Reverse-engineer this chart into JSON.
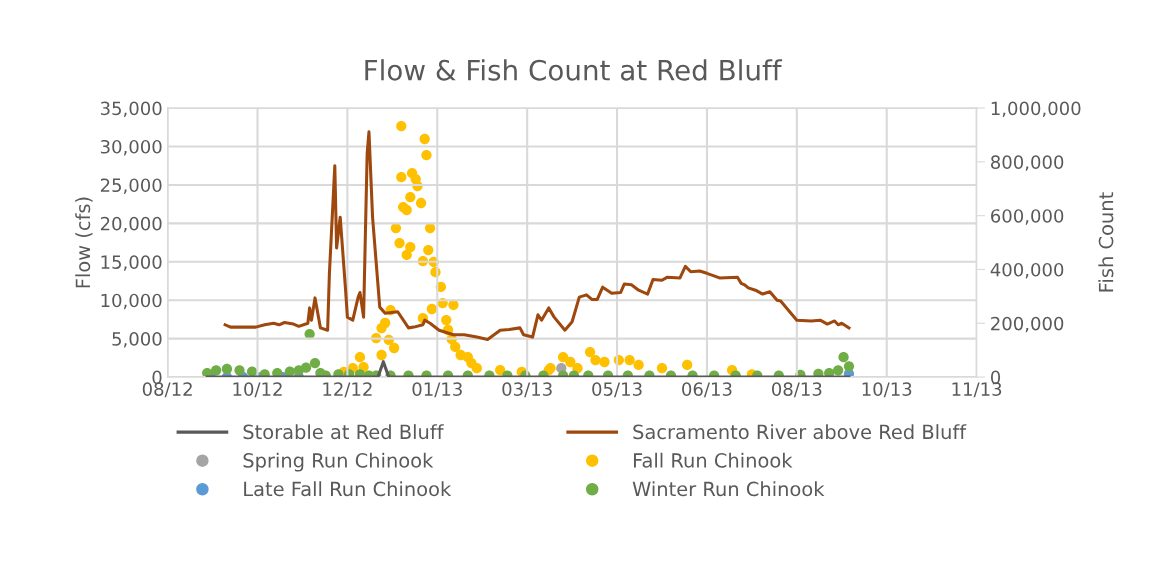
{
  "chart_data": {
    "type": "line",
    "title": "Flow & Fish Count at Red Bluff",
    "ylabel": "Flow (cfs)",
    "y2label": "Fish Count",
    "xlim": [
      "2012-08-29",
      "2013-11-22"
    ],
    "xticks": [
      {
        "value": "2012-08-29",
        "label": "08/12"
      },
      {
        "value": "2012-10-18",
        "label": "10/12"
      },
      {
        "value": "2012-12-07",
        "label": "12/12"
      },
      {
        "value": "2013-01-26",
        "label": "01/13"
      },
      {
        "value": "2013-03-17",
        "label": "03/13"
      },
      {
        "value": "2013-05-06",
        "label": "05/13"
      },
      {
        "value": "2013-06-25",
        "label": "06/13"
      },
      {
        "value": "2013-08-14",
        "label": "08/13"
      },
      {
        "value": "2013-10-03",
        "label": "10/13"
      },
      {
        "value": "2013-11-22",
        "label": "11/13"
      }
    ],
    "ylim": [
      0,
      35000
    ],
    "yticks": [
      0,
      {
        "value": 5000,
        "label": "5,000"
      },
      {
        "value": 10000,
        "label": "10,000"
      },
      {
        "value": 15000,
        "label": "15,000"
      },
      {
        "value": 20000,
        "label": "20,000"
      },
      {
        "value": 25000,
        "label": "25,000"
      },
      {
        "value": 30000,
        "label": "30,000"
      },
      {
        "value": 35000,
        "label": "35,000"
      }
    ],
    "y2lim": [
      0,
      1000000
    ],
    "y2ticks": [
      0,
      {
        "value": 200000,
        "label": "200,000"
      },
      {
        "value": 400000,
        "label": "400,000"
      },
      {
        "value": 600000,
        "label": "600,000"
      },
      {
        "value": 800000,
        "label": "800,000"
      },
      {
        "value": 1000000,
        "label": "1,000,000"
      }
    ],
    "grid": true,
    "legend": "bottom",
    "series": [
      {
        "name": "Storable at Red Bluff",
        "type": "line",
        "line_style": "solid",
        "color": "#595959",
        "x": [
          "2012-09-20",
          "2012-12-24",
          "2012-12-27",
          "2012-12-30",
          "2013-09-12"
        ],
        "values": [
          0,
          0,
          2000,
          0,
          0
        ]
      },
      {
        "name": "Sacramento River above Red Bluff",
        "type": "line",
        "line_style": "solid",
        "color": "#9e480e",
        "x": [
          "2012-09-30",
          "2012-10-03",
          "2012-10-17",
          "2012-10-22",
          "2012-10-27",
          "2012-10-30",
          "2012-11-02",
          "2012-11-07",
          "2012-11-10",
          "2012-11-15",
          "2012-11-16",
          "2012-11-17",
          "2012-11-19",
          "2012-11-22",
          "2012-11-26",
          "2012-11-27",
          "2012-11-30",
          "2012-12-01",
          "2012-12-03",
          "2012-12-06",
          "2012-12-07",
          "2012-12-10",
          "2012-12-13",
          "2012-12-14",
          "2012-12-16",
          "2012-12-18",
          "2012-12-19",
          "2012-12-21",
          "2012-12-25",
          "2012-12-28",
          "2013-01-04",
          "2013-01-10",
          "2013-01-13",
          "2013-01-18",
          "2013-01-19",
          "2013-01-22",
          "2013-01-27",
          "2013-02-04",
          "2013-02-10",
          "2013-02-17",
          "2013-02-23",
          "2013-03-02",
          "2013-03-07",
          "2013-03-13",
          "2013-03-15",
          "2013-03-20",
          "2013-03-23",
          "2013-03-25",
          "2013-03-29",
          "2013-04-01",
          "2013-04-07",
          "2013-04-11",
          "2013-04-15",
          "2013-04-19",
          "2013-04-22",
          "2013-04-25",
          "2013-04-28",
          "2013-05-03",
          "2013-05-08",
          "2013-05-10",
          "2013-05-14",
          "2013-05-18",
          "2013-05-23",
          "2013-05-26",
          "2013-05-31",
          "2013-06-03",
          "2013-06-10",
          "2013-06-13",
          "2013-06-16",
          "2013-06-21",
          "2013-06-25",
          "2013-07-02",
          "2013-07-12",
          "2013-07-14",
          "2013-07-16",
          "2013-07-18",
          "2013-07-22",
          "2013-07-26",
          "2013-07-30",
          "2013-08-03",
          "2013-08-05",
          "2013-08-14",
          "2013-08-22",
          "2013-08-27",
          "2013-08-31",
          "2013-09-04",
          "2013-09-06",
          "2013-09-08",
          "2013-09-12"
        ],
        "values": [
          6800,
          6500,
          6500,
          6800,
          7000,
          6800,
          7100,
          6900,
          6600,
          7000,
          9000,
          7400,
          10300,
          6400,
          6100,
          13500,
          27500,
          16800,
          20800,
          11300,
          7800,
          7400,
          10400,
          11000,
          7800,
          29100,
          31900,
          20800,
          9100,
          8300,
          8500,
          6400,
          6500,
          6800,
          7400,
          7000,
          6100,
          5500,
          5500,
          5200,
          4900,
          6100,
          6200,
          6400,
          5500,
          5200,
          8100,
          7400,
          9000,
          7800,
          6100,
          7200,
          10400,
          10700,
          10100,
          10100,
          11700,
          10900,
          11000,
          12100,
          12000,
          11300,
          10800,
          12700,
          12600,
          13000,
          12900,
          14400,
          13700,
          13800,
          13500,
          12900,
          13000,
          12200,
          12000,
          11600,
          11300,
          10800,
          11100,
          10000,
          9900,
          7400,
          7300,
          7400,
          6900,
          7300,
          6800,
          7000,
          6400
        ]
      },
      {
        "name": "Spring Run Chinook",
        "type": "scatter",
        "axis": "y2",
        "marker": "circle",
        "color": "#a5a5a5",
        "x": [
          "2013-04-05"
        ],
        "values": [
          33000
        ]
      },
      {
        "name": "Fall Run Chinook",
        "type": "scatter",
        "axis": "y2",
        "marker": "circle",
        "color": "#ffc000",
        "x": [
          "2012-12-05",
          "2012-12-10",
          "2012-12-14",
          "2012-12-16",
          "2012-12-23",
          "2012-12-26",
          "2012-12-26",
          "2012-12-28",
          "2012-12-30",
          "2012-12-31",
          "2013-01-02",
          "2013-01-03",
          "2013-01-05",
          "2013-01-06",
          "2013-01-06",
          "2013-01-07",
          "2013-01-09",
          "2013-01-09",
          "2013-01-11",
          "2013-01-11",
          "2013-01-12",
          "2013-01-14",
          "2013-01-15",
          "2013-01-17",
          "2013-01-18",
          "2013-01-18",
          "2013-01-19",
          "2013-01-20",
          "2013-01-21",
          "2013-01-22",
          "2013-01-23",
          "2013-01-24",
          "2013-01-25",
          "2013-01-28",
          "2013-01-29",
          "2013-01-31",
          "2013-02-01",
          "2013-02-03",
          "2013-02-04",
          "2013-02-05",
          "2013-02-08",
          "2013-02-12",
          "2013-02-14",
          "2013-02-17",
          "2013-03-02",
          "2013-03-14",
          "2013-03-29",
          "2013-03-30",
          "2013-04-06",
          "2013-04-10",
          "2013-04-14",
          "2013-04-21",
          "2013-04-24",
          "2013-04-29",
          "2013-05-07",
          "2013-05-13",
          "2013-05-18",
          "2013-05-31",
          "2013-06-14",
          "2013-07-09",
          "2013-07-20"
        ],
        "values": [
          19000,
          33000,
          74000,
          37000,
          145000,
          182000,
          82000,
          201000,
          138000,
          249000,
          108000,
          554000,
          498000,
          933000,
          743000,
          632000,
          621000,
          454000,
          669000,
          483000,
          758000,
          736000,
          710000,
          647000,
          431000,
          219000,
          885000,
          825000,
          472000,
          554000,
          253000,
          428000,
          390000,
          335000,
          275000,
          212000,
          175000,
          141000,
          268000,
          112000,
          82000,
          74000,
          52000,
          33000,
          26000,
          19000,
          26000,
          33000,
          74000,
          56000,
          33000,
          93000,
          63000,
          56000,
          63000,
          63000,
          45000,
          33000,
          45000,
          26000,
          10000
        ]
      },
      {
        "name": "Late Fall Run Chinook",
        "type": "scatter",
        "axis": "y2",
        "marker": "circle",
        "color": "#5b9bd5",
        "x": [
          "2012-09-22",
          "2012-10-01",
          "2012-10-10",
          "2012-10-20",
          "2012-11-01",
          "2012-11-10",
          "2013-09-12"
        ],
        "values": [
          0,
          0,
          0,
          0,
          0,
          0,
          12000
        ]
      },
      {
        "name": "Winter Run Chinook",
        "type": "scatter",
        "axis": "y2",
        "marker": "circle",
        "color": "#70ad47",
        "x": [
          "2012-09-20",
          "2012-09-25",
          "2012-10-01",
          "2012-10-08",
          "2012-10-15",
          "2012-10-22",
          "2012-10-29",
          "2012-11-05",
          "2012-11-10",
          "2012-11-14",
          "2012-11-16",
          "2012-11-19",
          "2012-11-22",
          "2012-11-25",
          "2012-12-02",
          "2012-12-08",
          "2012-12-14",
          "2012-12-19",
          "2012-12-23",
          "2012-12-31",
          "2013-01-10",
          "2013-01-20",
          "2013-02-01",
          "2013-02-12",
          "2013-02-24",
          "2013-03-06",
          "2013-03-16",
          "2013-03-26",
          "2013-04-06",
          "2013-04-12",
          "2013-04-20",
          "2013-05-01",
          "2013-05-12",
          "2013-05-24",
          "2013-06-05",
          "2013-06-17",
          "2013-06-29",
          "2013-07-11",
          "2013-07-23",
          "2013-08-04",
          "2013-08-16",
          "2013-08-26",
          "2013-09-01",
          "2013-09-06",
          "2013-09-09",
          "2013-09-12"
        ],
        "values": [
          15000,
          25000,
          30000,
          25000,
          20000,
          10000,
          15000,
          20000,
          25000,
          35000,
          160000,
          52000,
          15000,
          5000,
          10000,
          10000,
          10000,
          5000,
          5000,
          5000,
          5000,
          5000,
          5000,
          5000,
          5000,
          5000,
          5000,
          5000,
          5000,
          5000,
          5000,
          5000,
          5000,
          5000,
          5000,
          5000,
          5000,
          5000,
          5000,
          5000,
          8000,
          12000,
          15000,
          25000,
          74000,
          40000
        ]
      }
    ]
  }
}
